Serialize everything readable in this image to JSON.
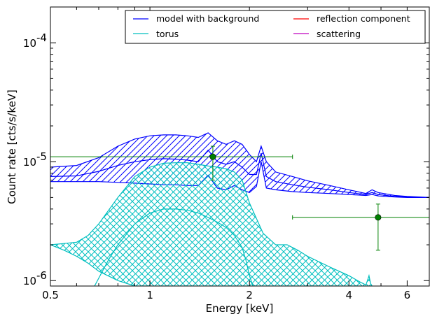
{
  "chart_data": {
    "type": "line",
    "xlabel": "Energy [keV]",
    "ylabel": "Count rate [cts/s/keV]",
    "x_scale": "log",
    "y_scale": "log",
    "xlim": [
      0.5,
      7.0
    ],
    "ylim": [
      9e-07,
      0.0002
    ],
    "x_ticks": [
      0.5,
      1,
      2,
      4,
      6
    ],
    "x_tick_labels": [
      "0.5",
      "1",
      "2",
      "4",
      "6"
    ],
    "y_ticks": [
      1e-06,
      1e-05,
      0.0001
    ],
    "y_tick_mantissa": [
      "10",
      "10",
      "10"
    ],
    "y_tick_exponents": [
      "-6",
      "-5",
      "-4"
    ],
    "legend": {
      "position": "top-right",
      "columns": 2,
      "entries": [
        {
          "label": "model with background",
          "color": "#0000ff"
        },
        {
          "label": "reflection component",
          "color": "#ff0000"
        },
        {
          "label": "torus",
          "color": "#00bfbf"
        },
        {
          "label": "scattering",
          "color": "#bf00bf"
        }
      ]
    },
    "series": [
      {
        "name": "model with background",
        "kind": "band",
        "color": "#0000ff",
        "hatch": "diagonal",
        "x": [
          0.5,
          0.6,
          0.7,
          0.8,
          0.9,
          1.0,
          1.1,
          1.2,
          1.3,
          1.4,
          1.5,
          1.6,
          1.7,
          1.8,
          1.9,
          2.0,
          2.1,
          2.17,
          2.25,
          2.4,
          2.7,
          3.0,
          3.5,
          4.0,
          4.5,
          4.7,
          4.9,
          5.5,
          6.0,
          7.0
        ],
        "upper": [
          9e-06,
          9.3e-06,
          1.08e-05,
          1.35e-05,
          1.55e-05,
          1.65e-05,
          1.68e-05,
          1.68e-05,
          1.65e-05,
          1.6e-05,
          1.75e-05,
          1.5e-05,
          1.4e-05,
          1.5e-05,
          1.4e-05,
          1.15e-05,
          1e-05,
          1.35e-05,
          1e-05,
          8.2e-06,
          7.5e-06,
          6.9e-06,
          6.3e-06,
          5.8e-06,
          5.4e-06,
          5.8e-06,
          5.5e-06,
          5.2e-06,
          5.1e-06,
          5e-06
        ],
        "lower": [
          6.8e-06,
          6.8e-06,
          6.8e-06,
          6.7e-06,
          6.6e-06,
          6.5e-06,
          6.4e-06,
          6.4e-06,
          6.3e-06,
          6.3e-06,
          7.7e-06,
          6e-06,
          5.8e-06,
          6.3e-06,
          5.8e-06,
          5.5e-06,
          6.2e-06,
          1e-05,
          6e-06,
          5.8e-06,
          5.6e-06,
          5.5e-06,
          5.4e-06,
          5.3e-06,
          5.2e-06,
          5.3e-06,
          5.15e-06,
          5.05e-06,
          5e-06,
          5e-06
        ]
      },
      {
        "name": "model with background (median)",
        "kind": "line",
        "color": "#0000ff",
        "x": [
          0.5,
          0.6,
          0.7,
          0.8,
          0.9,
          1.0,
          1.1,
          1.2,
          1.3,
          1.4,
          1.5,
          1.6,
          1.7,
          1.8,
          1.9,
          2.0,
          2.1,
          2.17,
          2.25,
          2.4,
          2.7,
          3.0,
          3.5,
          4.0,
          4.5,
          4.7,
          4.9,
          5.5,
          6.0,
          7.0
        ],
        "values": [
          7.5e-06,
          7.6e-06,
          8.3e-06,
          9.3e-06,
          1e-05,
          1.04e-05,
          1.06e-05,
          1.05e-05,
          1.03e-05,
          1e-05,
          1.25e-05,
          1e-05,
          9.5e-06,
          1e-05,
          9e-06,
          7.8e-06,
          7.8e-06,
          1.18e-05,
          7.5e-06,
          6.8e-06,
          6.4e-06,
          6.1e-06,
          5.8e-06,
          5.5e-06,
          5.3e-06,
          5.5e-06,
          5.3e-06,
          5.1e-06,
          5.05e-06,
          5e-06
        ]
      },
      {
        "name": "torus",
        "kind": "band",
        "color": "#00bfbf",
        "hatch": "cross",
        "x": [
          0.5,
          0.55,
          0.6,
          0.65,
          0.7,
          0.8,
          0.9,
          1.0,
          1.1,
          1.2,
          1.3,
          1.4,
          1.5,
          1.6,
          1.7,
          1.8,
          1.9,
          2.0,
          2.2,
          2.4,
          2.6,
          2.8,
          3.0,
          3.5,
          4.0,
          4.3,
          4.5,
          4.55,
          4.6,
          4.65,
          4.7
        ],
        "upper": [
          2e-06,
          2.05e-06,
          2.1e-06,
          2.4e-06,
          3e-06,
          5e-06,
          7.5e-06,
          9e-06,
          9.7e-06,
          9.8e-06,
          9.8e-06,
          9.5e-06,
          9.2e-06,
          9e-06,
          8.7e-06,
          8.2e-06,
          7e-06,
          4.5e-06,
          2.5e-06,
          2e-06,
          2e-06,
          1.8e-06,
          1.6e-06,
          1.3e-06,
          1.1e-06,
          9.8e-07,
          9.2e-07,
          1e-06,
          1.1e-06,
          9.5e-07,
          9e-07
        ],
        "lower": [
          2e-06,
          1.8e-06,
          1.6e-06,
          1.4e-06,
          1.2e-06,
          1e-06,
          9e-07,
          9e-07,
          9e-07,
          9e-07,
          9e-07,
          9e-07,
          9e-07,
          9e-07,
          9e-07,
          9e-07,
          9e-07,
          9e-07,
          9e-07,
          9e-07,
          9e-07,
          9e-07,
          9e-07,
          9e-07,
          9e-07,
          9e-07,
          9e-07,
          9e-07,
          9e-07,
          9e-07,
          9e-07
        ]
      },
      {
        "name": "torus (median)",
        "kind": "line",
        "color": "#00bfbf",
        "x": [
          0.68,
          0.75,
          0.8,
          0.9,
          1.0,
          1.1,
          1.2,
          1.3,
          1.4,
          1.5,
          1.6,
          1.7,
          1.8,
          1.9,
          1.95,
          2.0,
          2.05
        ],
        "values": [
          9e-07,
          1.5e-06,
          2e-06,
          3e-06,
          3.7e-06,
          4e-06,
          4e-06,
          3.9e-06,
          3.7e-06,
          3.4e-06,
          3.1e-06,
          2.8e-06,
          2.4e-06,
          1.9e-06,
          1.5e-06,
          1.1e-06,
          9e-07
        ]
      }
    ],
    "data_points": [
      {
        "x": 1.55,
        "y": 1.1e-05,
        "xerr": [
          0.5,
          2.7
        ],
        "yerr": [
          7e-06,
          1.35e-05
        ],
        "color": "#008000"
      },
      {
        "x": 4.9,
        "y": 3.4e-06,
        "xerr": [
          2.7,
          7.0
        ],
        "yerr": [
          1.8e-06,
          4.4e-06
        ],
        "color": "#008000"
      }
    ]
  }
}
